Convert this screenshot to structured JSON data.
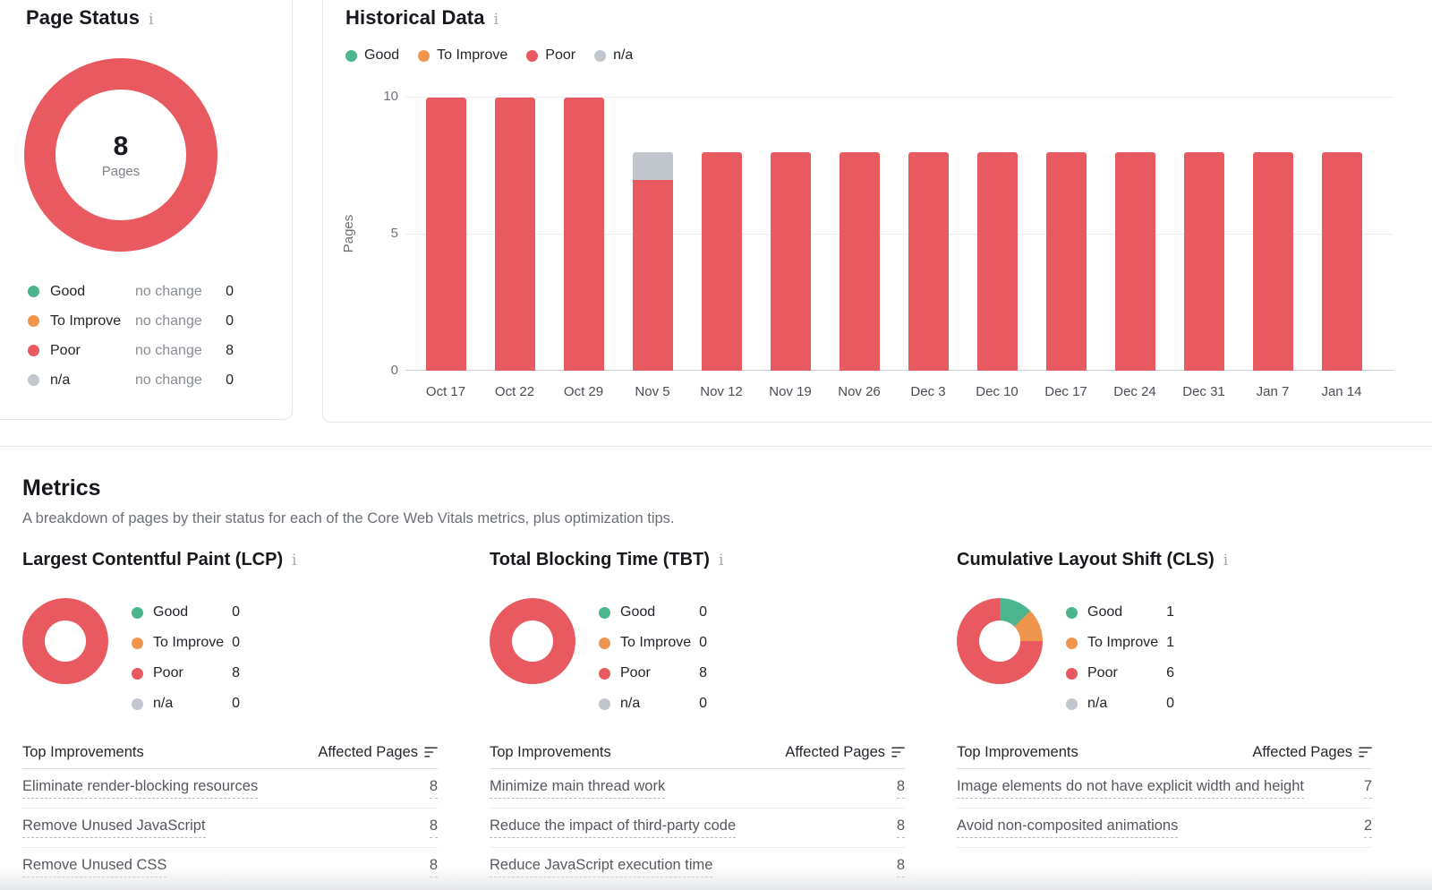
{
  "colors": {
    "good": "#4bb58e",
    "to_improve": "#f0954e",
    "poor": "#e85a5f",
    "na": "#c2c7cd"
  },
  "page_status": {
    "title": "Page Status",
    "center_value": "8",
    "center_label": "Pages",
    "legend": [
      {
        "key": "good",
        "label": "Good",
        "change": "no change",
        "value": "0"
      },
      {
        "key": "to_improve",
        "label": "To Improve",
        "change": "no change",
        "value": "0"
      },
      {
        "key": "poor",
        "label": "Poor",
        "change": "no change",
        "value": "8"
      },
      {
        "key": "na",
        "label": "n/a",
        "change": "no change",
        "value": "0"
      }
    ]
  },
  "historical": {
    "title": "Historical Data",
    "legend": [
      {
        "key": "good",
        "label": "Good"
      },
      {
        "key": "to_improve",
        "label": "To Improve"
      },
      {
        "key": "poor",
        "label": "Poor"
      },
      {
        "key": "na",
        "label": "n/a"
      }
    ]
  },
  "chart_data": [
    {
      "id": "page-status-donut",
      "type": "pie",
      "title": "Page Status",
      "center_value": 8,
      "center_label": "Pages",
      "segments": [
        {
          "label": "Good",
          "color_key": "good",
          "value": 0
        },
        {
          "label": "To Improve",
          "color_key": "to_improve",
          "value": 0
        },
        {
          "label": "Poor",
          "color_key": "poor",
          "value": 8
        },
        {
          "label": "n/a",
          "color_key": "na",
          "value": 0
        }
      ]
    },
    {
      "id": "historical-bars",
      "type": "bar",
      "stacked": true,
      "title": "Historical Data",
      "xlabel": "",
      "ylabel": "Pages",
      "ylim": [
        0,
        10
      ],
      "yticks": [
        0,
        5,
        10
      ],
      "grid": true,
      "legend_position": "top",
      "categories": [
        "Oct 17",
        "Oct 22",
        "Oct 29",
        "Nov 5",
        "Nov 12",
        "Nov 19",
        "Nov 26",
        "Dec 3",
        "Dec 10",
        "Dec 17",
        "Dec 24",
        "Dec 31",
        "Jan 7",
        "Jan 14"
      ],
      "series": [
        {
          "name": "Good",
          "color_key": "good",
          "values": [
            0,
            0,
            0,
            0,
            0,
            0,
            0,
            0,
            0,
            0,
            0,
            0,
            0,
            0
          ]
        },
        {
          "name": "To Improve",
          "color_key": "to_improve",
          "values": [
            0,
            0,
            0,
            0,
            0,
            0,
            0,
            0,
            0,
            0,
            0,
            0,
            0,
            0
          ]
        },
        {
          "name": "Poor",
          "color_key": "poor",
          "values": [
            10,
            10,
            10,
            7,
            8,
            8,
            8,
            8,
            8,
            8,
            8,
            8,
            8,
            8
          ]
        },
        {
          "name": "n/a",
          "color_key": "na",
          "values": [
            0,
            0,
            0,
            1,
            0,
            0,
            0,
            0,
            0,
            0,
            0,
            0,
            0,
            0
          ]
        }
      ]
    },
    {
      "id": "lcp-donut",
      "type": "pie",
      "title": "Largest Contentful Paint (LCP)",
      "segments": [
        {
          "label": "Good",
          "color_key": "good",
          "value": 0
        },
        {
          "label": "To Improve",
          "color_key": "to_improve",
          "value": 0
        },
        {
          "label": "Poor",
          "color_key": "poor",
          "value": 8
        },
        {
          "label": "n/a",
          "color_key": "na",
          "value": 0
        }
      ]
    },
    {
      "id": "tbt-donut",
      "type": "pie",
      "title": "Total Blocking Time (TBT)",
      "segments": [
        {
          "label": "Good",
          "color_key": "good",
          "value": 0
        },
        {
          "label": "To Improve",
          "color_key": "to_improve",
          "value": 0
        },
        {
          "label": "Poor",
          "color_key": "poor",
          "value": 8
        },
        {
          "label": "n/a",
          "color_key": "na",
          "value": 0
        }
      ]
    },
    {
      "id": "cls-donut",
      "type": "pie",
      "title": "Cumulative Layout Shift (CLS)",
      "segments": [
        {
          "label": "Good",
          "color_key": "good",
          "value": 1
        },
        {
          "label": "To Improve",
          "color_key": "to_improve",
          "value": 1
        },
        {
          "label": "Poor",
          "color_key": "poor",
          "value": 6
        },
        {
          "label": "n/a",
          "color_key": "na",
          "value": 0
        }
      ]
    }
  ],
  "metrics_section": {
    "title": "Metrics",
    "subtitle": "A breakdown of pages by their status for each of the Core Web Vitals metrics, plus optimization tips.",
    "columns": [
      {
        "id": "lcp",
        "title": "Largest Contentful Paint (LCP)",
        "legend": [
          {
            "key": "good",
            "label": "Good",
            "value": "0"
          },
          {
            "key": "to_improve",
            "label": "To Improve",
            "value": "0"
          },
          {
            "key": "poor",
            "label": "Poor",
            "value": "8"
          },
          {
            "key": "na",
            "label": "n/a",
            "value": "0"
          }
        ],
        "table": {
          "col1": "Top Improvements",
          "col2": "Affected Pages",
          "rows": [
            {
              "label": "Eliminate render-blocking resources",
              "value": "8"
            },
            {
              "label": "Remove Unused JavaScript",
              "value": "8"
            },
            {
              "label": "Remove Unused CSS",
              "value": "8"
            }
          ]
        }
      },
      {
        "id": "tbt",
        "title": "Total Blocking Time (TBT)",
        "legend": [
          {
            "key": "good",
            "label": "Good",
            "value": "0"
          },
          {
            "key": "to_improve",
            "label": "To Improve",
            "value": "0"
          },
          {
            "key": "poor",
            "label": "Poor",
            "value": "8"
          },
          {
            "key": "na",
            "label": "n/a",
            "value": "0"
          }
        ],
        "table": {
          "col1": "Top Improvements",
          "col2": "Affected Pages",
          "rows": [
            {
              "label": "Minimize main thread work",
              "value": "8"
            },
            {
              "label": "Reduce the impact of third-party code",
              "value": "8"
            },
            {
              "label": "Reduce JavaScript execution time",
              "value": "8"
            }
          ]
        }
      },
      {
        "id": "cls",
        "title": "Cumulative Layout Shift (CLS)",
        "legend": [
          {
            "key": "good",
            "label": "Good",
            "value": "1"
          },
          {
            "key": "to_improve",
            "label": "To Improve",
            "value": "1"
          },
          {
            "key": "poor",
            "label": "Poor",
            "value": "6"
          },
          {
            "key": "na",
            "label": "n/a",
            "value": "0"
          }
        ],
        "table": {
          "col1": "Top Improvements",
          "col2": "Affected Pages",
          "rows": [
            {
              "label": "Image elements do not have explicit width and height",
              "value": "7"
            },
            {
              "label": "Avoid non-composited animations",
              "value": "2"
            }
          ]
        }
      }
    ]
  }
}
